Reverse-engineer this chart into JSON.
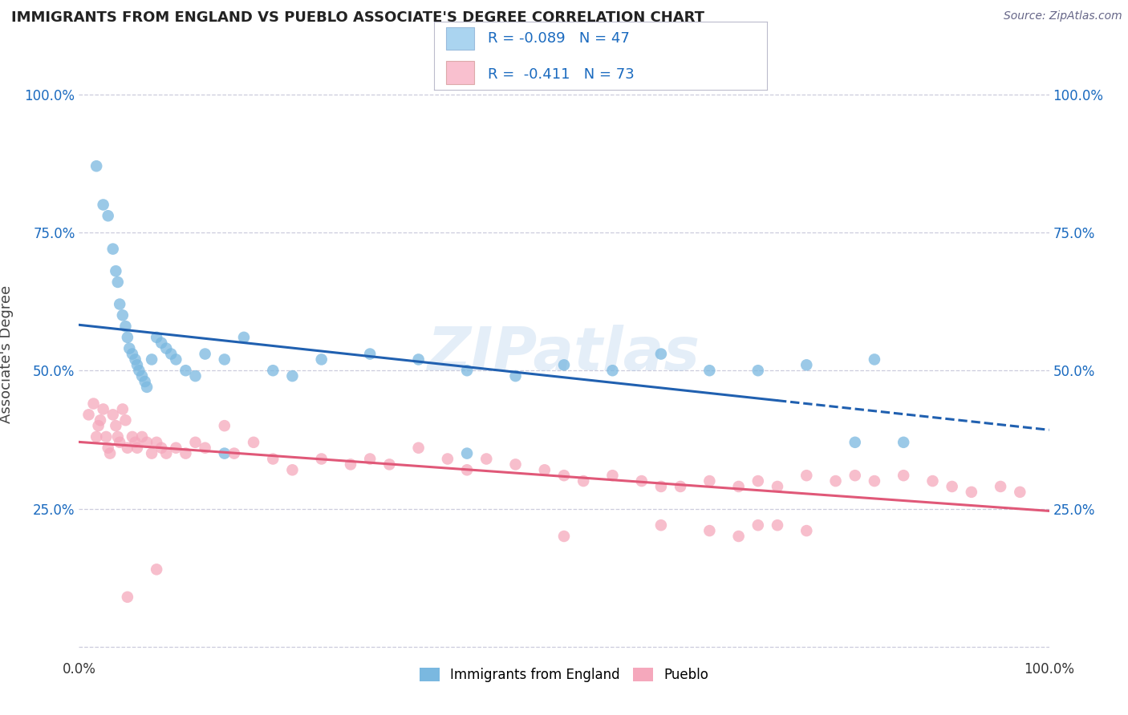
{
  "title": "IMMIGRANTS FROM ENGLAND VS PUEBLO ASSOCIATE'S DEGREE CORRELATION CHART",
  "source": "Source: ZipAtlas.com",
  "ylabel": "Associate's Degree",
  "watermark": "ZIPatlas",
  "blue_R": -0.089,
  "blue_N": 47,
  "pink_R": -0.411,
  "pink_N": 73,
  "xlim": [
    0.0,
    1.0
  ],
  "ylim": [
    -0.02,
    1.08
  ],
  "blue_color": "#7ab8e0",
  "pink_color": "#f5a8bc",
  "blue_line_color": "#2060b0",
  "pink_line_color": "#e05878",
  "legend_box_color": "#aad4f0",
  "legend_box_color2": "#f9c0cf",
  "title_color": "#222222",
  "source_color": "#666688",
  "stat_color": "#1a6abf",
  "background_color": "#ffffff",
  "grid_color": "#ccccdd",
  "blue_scatter_x": [
    0.018,
    0.025,
    0.03,
    0.035,
    0.038,
    0.04,
    0.042,
    0.045,
    0.048,
    0.05,
    0.052,
    0.055,
    0.058,
    0.06,
    0.062,
    0.065,
    0.068,
    0.07,
    0.075,
    0.08,
    0.085,
    0.09,
    0.095,
    0.1,
    0.11,
    0.12,
    0.13,
    0.15,
    0.17,
    0.2,
    0.22,
    0.25,
    0.3,
    0.35,
    0.4,
    0.45,
    0.5,
    0.55,
    0.6,
    0.65,
    0.7,
    0.75,
    0.8,
    0.82,
    0.85,
    0.15,
    0.4
  ],
  "blue_scatter_y": [
    0.87,
    0.8,
    0.78,
    0.72,
    0.68,
    0.66,
    0.62,
    0.6,
    0.58,
    0.56,
    0.54,
    0.53,
    0.52,
    0.51,
    0.5,
    0.49,
    0.48,
    0.47,
    0.52,
    0.56,
    0.55,
    0.54,
    0.53,
    0.52,
    0.5,
    0.49,
    0.53,
    0.52,
    0.56,
    0.5,
    0.49,
    0.52,
    0.53,
    0.52,
    0.5,
    0.49,
    0.51,
    0.5,
    0.53,
    0.5,
    0.5,
    0.51,
    0.37,
    0.52,
    0.37,
    0.35,
    0.35
  ],
  "pink_scatter_x": [
    0.01,
    0.015,
    0.018,
    0.02,
    0.022,
    0.025,
    0.028,
    0.03,
    0.032,
    0.035,
    0.038,
    0.04,
    0.042,
    0.045,
    0.048,
    0.05,
    0.055,
    0.058,
    0.06,
    0.065,
    0.07,
    0.075,
    0.08,
    0.085,
    0.09,
    0.1,
    0.11,
    0.12,
    0.13,
    0.15,
    0.16,
    0.18,
    0.2,
    0.22,
    0.25,
    0.28,
    0.3,
    0.32,
    0.35,
    0.38,
    0.4,
    0.42,
    0.45,
    0.48,
    0.5,
    0.52,
    0.55,
    0.58,
    0.6,
    0.62,
    0.65,
    0.68,
    0.7,
    0.72,
    0.75,
    0.78,
    0.8,
    0.82,
    0.85,
    0.88,
    0.9,
    0.92,
    0.95,
    0.97,
    0.5,
    0.6,
    0.65,
    0.68,
    0.7,
    0.72,
    0.75,
    0.05,
    0.08
  ],
  "pink_scatter_y": [
    0.42,
    0.44,
    0.38,
    0.4,
    0.41,
    0.43,
    0.38,
    0.36,
    0.35,
    0.42,
    0.4,
    0.38,
    0.37,
    0.43,
    0.41,
    0.36,
    0.38,
    0.37,
    0.36,
    0.38,
    0.37,
    0.35,
    0.37,
    0.36,
    0.35,
    0.36,
    0.35,
    0.37,
    0.36,
    0.4,
    0.35,
    0.37,
    0.34,
    0.32,
    0.34,
    0.33,
    0.34,
    0.33,
    0.36,
    0.34,
    0.32,
    0.34,
    0.33,
    0.32,
    0.31,
    0.3,
    0.31,
    0.3,
    0.29,
    0.29,
    0.3,
    0.29,
    0.3,
    0.29,
    0.31,
    0.3,
    0.31,
    0.3,
    0.31,
    0.3,
    0.29,
    0.28,
    0.29,
    0.28,
    0.2,
    0.22,
    0.21,
    0.2,
    0.22,
    0.22,
    0.21,
    0.09,
    0.14
  ]
}
